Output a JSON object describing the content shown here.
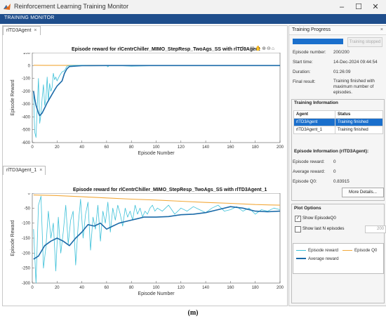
{
  "window": {
    "title": "Reinforcement Learning Training Monitor",
    "controls": [
      "–",
      "☐",
      "✕"
    ]
  },
  "tabbar": {
    "label": "TRAINING MONITOR"
  },
  "colors": {
    "episode_reward": "#3cc0d8",
    "average_reward": "#1a6aa8",
    "episode_q0": "#f2a93b",
    "selected_row": "#1a6fcc",
    "header": "#1f4e8c"
  },
  "left": {
    "top_tab": "rlTD3Agent",
    "bottom_tab": "rlTD3Agent_1",
    "toolbar_icons": [
      "brush-icon",
      "data-tips-icon",
      "save-icon",
      "pan-icon",
      "zoom-in-icon",
      "zoom-out-icon",
      "home-icon"
    ]
  },
  "right": {
    "header": "Training Progress",
    "stop_button": "Training stopped",
    "progress_fraction": 1.0,
    "episode_number_label": "Episode number:",
    "episode_number_value": "200/200",
    "start_time_label": "Start time:",
    "start_time_value": "14-Dec-2024 09:44:54",
    "duration_label": "Duration:",
    "duration_value": "01:26:09",
    "final_result_label": "Final result:",
    "final_result_value": "Training finished with maximum number of episodes.",
    "training_info_title": "Training Information",
    "agents_table": {
      "headers": [
        "Agent",
        "Status"
      ],
      "rows": [
        {
          "agent": "rlTD3Agent",
          "status": "Training finished"
        },
        {
          "agent": "rlTD3Agent_1",
          "status": "Training finished"
        }
      ]
    },
    "episode_info_title": "Episode Information (rlTD3Agent):",
    "episode_reward_label": "Episode reward:",
    "episode_reward_value": "0",
    "average_reward_label": "Average reward:",
    "average_reward_value": "0",
    "episode_q0_label": "Episode Q0:",
    "episode_q0_value": "0.83915",
    "more_details": "More Details...",
    "plot_options_title": "Plot Options",
    "show_episode_q0": "Show EpisodeQ0",
    "show_last_n": "Show last N episodes",
    "last_n_value": "200",
    "legend": {
      "episode_reward": "Episode reward",
      "episode_q0": "Episode Q0",
      "average_reward": "Average reward"
    }
  },
  "caption": "(m)",
  "chart_data": [
    {
      "type": "line",
      "title": "Episode reward for rlCentrChiller_MIMO_StepResp_TwoAgs_SS with rlTD3Agent",
      "xlabel": "Episode Number",
      "ylabel": "Episode Reward",
      "xlim": [
        0,
        200
      ],
      "ylim": [
        -600,
        100
      ],
      "xticks": [
        "0",
        "20",
        "40",
        "60",
        "80",
        "100",
        "120",
        "140",
        "160",
        "180",
        "200"
      ],
      "yticks": [
        "100",
        "0",
        "-100",
        "-200",
        "-300",
        "-400",
        "-500",
        "-600"
      ],
      "series": [
        {
          "name": "Episode reward",
          "x": [
            1,
            2,
            3,
            4,
            5,
            6,
            7,
            8,
            9,
            10,
            11,
            12,
            13,
            14,
            15,
            16,
            17,
            18,
            19,
            20,
            22,
            24,
            26,
            28,
            30,
            40,
            50,
            60,
            61,
            62,
            70,
            80,
            100,
            120,
            140,
            160,
            180,
            200
          ],
          "y": [
            -200,
            -520,
            -560,
            -320,
            -100,
            -450,
            -380,
            -250,
            -150,
            -310,
            -260,
            -90,
            -280,
            -140,
            -200,
            -170,
            -60,
            -110,
            -90,
            -120,
            -80,
            -50,
            -40,
            -5,
            0,
            2,
            0,
            0,
            -10,
            0,
            0,
            -5,
            0,
            0,
            0,
            0,
            0,
            0
          ]
        },
        {
          "name": "Average reward",
          "x": [
            1,
            2,
            3,
            4,
            5,
            6,
            8,
            10,
            12,
            15,
            18,
            20,
            22,
            24,
            26,
            28,
            30,
            40,
            60,
            80,
            100,
            120,
            140,
            160,
            180,
            200
          ],
          "y": [
            -200,
            -260,
            -310,
            -340,
            -370,
            -390,
            -370,
            -330,
            -290,
            -240,
            -190,
            -160,
            -140,
            -120,
            -60,
            -25,
            -8,
            -1,
            0,
            0,
            0,
            0,
            0,
            0,
            0,
            0
          ]
        },
        {
          "name": "Episode Q0",
          "x": [
            1,
            10,
            20,
            40,
            60,
            80,
            100,
            120,
            140,
            160,
            180,
            200
          ],
          "y": [
            2,
            1,
            1,
            1,
            1,
            1,
            1,
            1,
            1,
            1,
            1,
            1
          ]
        }
      ]
    },
    {
      "type": "line",
      "title": "Episode reward for rlCentrChiller_MIMO_StepResp_TwoAgs_SS with rlTD3Agent_1",
      "xlabel": "Episode Number",
      "ylabel": "Episode Reward",
      "xlim": [
        0,
        200
      ],
      "ylim": [
        -300,
        0
      ],
      "xticks": [
        "0",
        "20",
        "40",
        "60",
        "80",
        "100",
        "120",
        "140",
        "160",
        "180",
        "200"
      ],
      "yticks": [
        "0",
        "-50",
        "-100",
        "-150",
        "-200",
        "-250",
        "-300"
      ],
      "series": [
        {
          "name": "Episode reward",
          "x": [
            1,
            3,
            5,
            7,
            9,
            11,
            13,
            15,
            17,
            19,
            21,
            23,
            25,
            27,
            29,
            31,
            33,
            35,
            37,
            39,
            41,
            43,
            45,
            47,
            49,
            51,
            53,
            55,
            57,
            59,
            61,
            63,
            65,
            67,
            69,
            71,
            73,
            75,
            77,
            79,
            81,
            83,
            85,
            87,
            89,
            91,
            93,
            95,
            97,
            99,
            101,
            105,
            110,
            115,
            120,
            125,
            130,
            135,
            140,
            145,
            150,
            155,
            160,
            165,
            170,
            175,
            180,
            185,
            190,
            195,
            200
          ],
          "y": [
            -120,
            -300,
            -40,
            -10,
            -250,
            -180,
            -60,
            -150,
            -100,
            -260,
            -80,
            -200,
            -130,
            -40,
            -170,
            -90,
            -60,
            -240,
            -110,
            -20,
            -150,
            -70,
            -30,
            -190,
            -80,
            -120,
            -40,
            -160,
            -60,
            -100,
            -30,
            -130,
            -50,
            -90,
            -40,
            -70,
            -110,
            -50,
            -80,
            -60,
            -90,
            -40,
            -70,
            -50,
            -80,
            -60,
            -70,
            -50,
            -40,
            -60,
            -50,
            -60,
            -40,
            -70,
            -50,
            -60,
            -45,
            -55,
            -65,
            -50,
            -40,
            -60,
            -55,
            -45,
            -60,
            -50,
            -70,
            -55,
            -60,
            -50,
            -55
          ]
        },
        {
          "name": "Average reward",
          "x": [
            1,
            5,
            10,
            15,
            20,
            25,
            30,
            35,
            40,
            45,
            50,
            55,
            60,
            65,
            70,
            75,
            80,
            85,
            90,
            100,
            110,
            120,
            130,
            140,
            150,
            160,
            170,
            180,
            190,
            200
          ],
          "y": [
            -220,
            -210,
            -175,
            -160,
            -150,
            -160,
            -175,
            -150,
            -130,
            -105,
            -110,
            -100,
            -120,
            -110,
            -100,
            -95,
            -90,
            -85,
            -80,
            -80,
            -78,
            -72,
            -70,
            -65,
            -55,
            -45,
            -50,
            -60,
            -62,
            -60
          ]
        },
        {
          "name": "Episode Q0",
          "x": [
            1,
            20,
            40,
            60,
            80,
            100,
            120,
            140,
            160,
            180,
            200
          ],
          "y": [
            -6,
            -8,
            -12,
            -16,
            -20,
            -23,
            -27,
            -31,
            -34,
            -38,
            -40
          ]
        }
      ]
    }
  ]
}
